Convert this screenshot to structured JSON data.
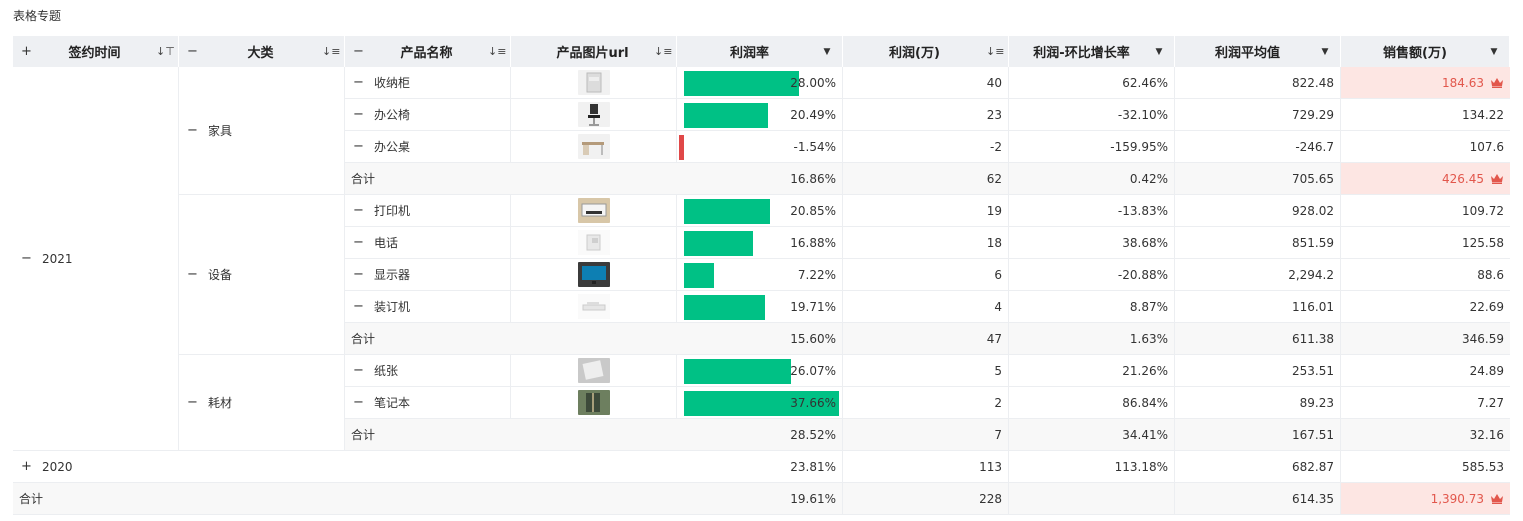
{
  "page": {
    "title": "表格专题"
  },
  "columns": {
    "sign_time": "签约时间",
    "category": "大类",
    "product": "产品名称",
    "image_url": "产品图片url",
    "profit_rate": "利润率",
    "profit": "利润(万)",
    "growth": "利润-环比增长率",
    "avg_profit": "利润平均值",
    "sales": "销售额(万)"
  },
  "year_2021": "2021",
  "year_2020": "2020",
  "groups": [
    {
      "name": "家具",
      "items": [
        {
          "name": "收纳柜",
          "image": "cabinet",
          "rate": "28.00%",
          "rate_value": 28.0,
          "profit": "40",
          "growth": "62.46%",
          "avg": "822.48",
          "sales": "184.63",
          "sales_highlight": true
        },
        {
          "name": "办公椅",
          "image": "office-chair",
          "rate": "20.49%",
          "rate_value": 20.49,
          "profit": "23",
          "growth": "-32.10%",
          "avg": "729.29",
          "sales": "134.22"
        },
        {
          "name": "办公桌",
          "image": "office-desk",
          "rate": "-1.54%",
          "rate_value": -1.54,
          "profit": "-2",
          "growth": "-159.95%",
          "avg": "-246.7",
          "sales": "107.6"
        }
      ],
      "subtotal": {
        "label": "合计",
        "rate": "16.86%",
        "profit": "62",
        "growth": "0.42%",
        "avg": "705.65",
        "sales": "426.45",
        "sales_highlight": true
      }
    },
    {
      "name": "设备",
      "items": [
        {
          "name": "打印机",
          "image": "printer",
          "rate": "20.85%",
          "rate_value": 20.85,
          "profit": "19",
          "growth": "-13.83%",
          "avg": "928.02",
          "sales": "109.72"
        },
        {
          "name": "电话",
          "image": "phone",
          "rate": "16.88%",
          "rate_value": 16.88,
          "profit": "18",
          "growth": "38.68%",
          "avg": "851.59",
          "sales": "125.58"
        },
        {
          "name": "显示器",
          "image": "monitor",
          "rate": "7.22%",
          "rate_value": 7.22,
          "profit": "6",
          "growth": "-20.88%",
          "avg": "2,294.2",
          "sales": "88.6"
        },
        {
          "name": "装订机",
          "image": "binder",
          "rate": "19.71%",
          "rate_value": 19.71,
          "profit": "4",
          "growth": "8.87%",
          "avg": "116.01",
          "sales": "22.69"
        }
      ],
      "subtotal": {
        "label": "合计",
        "rate": "15.60%",
        "profit": "47",
        "growth": "1.63%",
        "avg": "611.38",
        "sales": "346.59"
      }
    },
    {
      "name": "耗材",
      "items": [
        {
          "name": "纸张",
          "image": "paper",
          "rate": "26.07%",
          "rate_value": 26.07,
          "profit": "5",
          "growth": "21.26%",
          "avg": "253.51",
          "sales": "24.89"
        },
        {
          "name": "笔记本",
          "image": "notebook",
          "rate": "37.66%",
          "rate_value": 37.66,
          "profit": "2",
          "growth": "86.84%",
          "avg": "89.23",
          "sales": "7.27"
        }
      ],
      "subtotal": {
        "label": "合计",
        "rate": "28.52%",
        "profit": "7",
        "growth": "34.41%",
        "avg": "167.51",
        "sales": "32.16"
      }
    }
  ],
  "row_2020": {
    "rate": "23.81%",
    "profit": "113",
    "growth": "113.18%",
    "avg": "682.87",
    "sales": "585.53"
  },
  "grand_total": {
    "label": "合计",
    "rate": "19.61%",
    "profit": "228",
    "growth": "",
    "avg": "614.35",
    "sales": "1,390.73",
    "sales_highlight": true
  },
  "colors": {
    "bar_positive": "#00c185",
    "bar_negative": "#e04848",
    "highlight_bg": "#fde6e3",
    "highlight_text": "#e2574c",
    "header_bg": "#eef0f3"
  },
  "icons": {
    "expand": "plus-icon",
    "collapse": "minus-icon",
    "sort": "sort-icon",
    "filter": "filter-icon",
    "dropdown": "caret-down-icon",
    "crown": "crown-icon"
  }
}
